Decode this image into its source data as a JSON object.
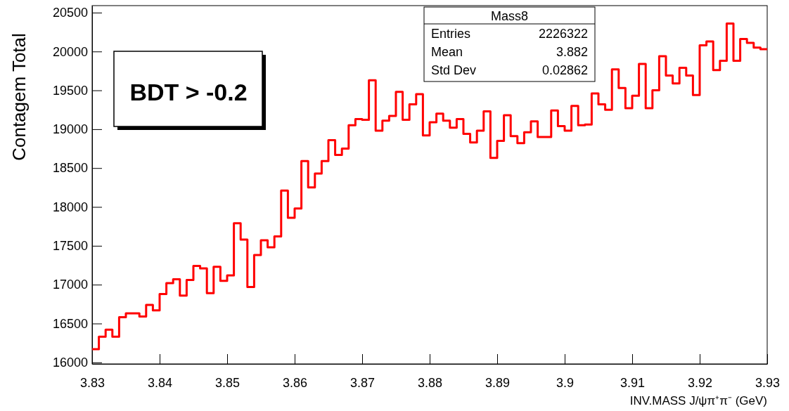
{
  "chart_data": {
    "type": "histogram",
    "xlabel": "INV.MASS J/ψπ⁺π⁻ (GeV)",
    "ylabel": "Contagem Total",
    "color": "#ff0000",
    "bins": [
      3.83,
      3.831,
      3.832,
      3.833,
      3.834,
      3.835,
      3.836,
      3.837,
      3.838,
      3.839,
      3.84,
      3.841,
      3.842,
      3.843,
      3.844,
      3.845,
      3.846,
      3.847,
      3.848,
      3.849,
      3.85,
      3.851,
      3.852,
      3.853,
      3.854,
      3.855,
      3.856,
      3.857,
      3.858,
      3.859,
      3.86,
      3.861,
      3.862,
      3.863,
      3.864,
      3.865,
      3.866,
      3.867,
      3.868,
      3.869,
      3.87,
      3.871,
      3.872,
      3.873,
      3.874,
      3.875,
      3.876,
      3.877,
      3.878,
      3.879,
      3.88,
      3.881,
      3.882,
      3.883,
      3.884,
      3.885,
      3.886,
      3.887,
      3.888,
      3.889,
      3.89,
      3.891,
      3.892,
      3.893,
      3.894,
      3.895,
      3.896,
      3.897,
      3.898,
      3.899,
      3.9,
      3.901,
      3.902,
      3.903,
      3.904,
      3.905,
      3.906,
      3.907,
      3.908,
      3.909,
      3.91,
      3.911,
      3.912,
      3.913,
      3.914,
      3.915,
      3.916,
      3.917,
      3.918,
      3.919,
      3.92,
      3.921,
      3.922,
      3.923,
      3.924,
      3.925,
      3.926,
      3.927,
      3.928,
      3.929,
      3.93
    ],
    "values": [
      16170,
      16330,
      16420,
      16330,
      16580,
      16630,
      16630,
      16590,
      16740,
      16670,
      16880,
      17020,
      17070,
      16860,
      17060,
      17240,
      17210,
      16890,
      17230,
      17050,
      17120,
      17790,
      17580,
      16970,
      17380,
      17570,
      17480,
      17620,
      18210,
      17860,
      17980,
      18590,
      18250,
      18430,
      18590,
      18860,
      18670,
      18750,
      19050,
      19130,
      19120,
      19630,
      18980,
      19110,
      19170,
      19480,
      19120,
      19320,
      19450,
      18920,
      19090,
      19200,
      19110,
      19020,
      19130,
      18940,
      18830,
      18980,
      19230,
      18630,
      18850,
      19180,
      18910,
      18820,
      18960,
      19100,
      18900,
      18900,
      19240,
      19040,
      18980,
      19300,
      19050,
      19060,
      19460,
      19320,
      19250,
      19770,
      19530,
      19270,
      19430,
      19840,
      19270,
      19500,
      19940,
      19690,
      19590,
      19790,
      19690,
      19440,
      20080,
      20130,
      19760,
      19880,
      20360,
      19880,
      20160,
      20110,
      20050,
      20030
    ],
    "xlim": [
      3.83,
      3.93
    ],
    "xticks": [
      3.83,
      3.84,
      3.85,
      3.86,
      3.87,
      3.88,
      3.89,
      3.9,
      3.91,
      3.92,
      3.93
    ],
    "ylim": [
      15980,
      20590
    ],
    "yticks": [
      16000,
      16500,
      17000,
      17500,
      18000,
      18500,
      19000,
      19500,
      20000,
      20500
    ],
    "annotations": [
      "BDT > -0.2",
      "Mass8",
      "Entries",
      "2226322",
      "Mean",
      "3.882",
      "Std Dev",
      "0.02862"
    ]
  }
}
